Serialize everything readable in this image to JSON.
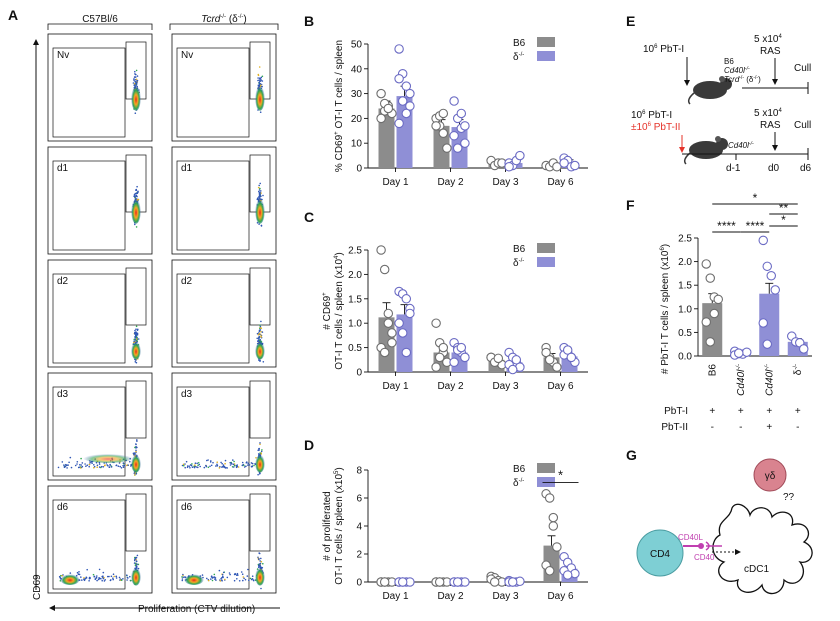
{
  "figure": {
    "panel_letters": [
      "A",
      "B",
      "C",
      "D",
      "E",
      "F",
      "G"
    ],
    "panelA": {
      "col1": "C57Bl/6",
      "col2_gene": "Tcrd",
      "col2_sup": "-/-",
      "col2_paren": "(δ",
      "col2_paren_sup": "-/-",
      "col2_close": ")",
      "rows": [
        "Nv",
        "d1",
        "d2",
        "d3",
        "d6"
      ],
      "ylabel": "CD69",
      "xlabel": "Proliferation (CTV dilution)"
    },
    "panelE": {
      "dose1": "10",
      "dose1_sup": "6",
      "dose1_cell": "PbT-I",
      "mice1_b6": "B6",
      "mice1_cd40": "Cd40l",
      "mice1_cd40_sup": "-/-",
      "mice1_tcrd": "Tcrd",
      "mice1_tcrd_sup": "-/-",
      "mice1_tcrd_paren": "(δ",
      "mice1_tcrd_paren_sup": "-/-",
      "mice1_tcrd_close": ")",
      "ras_dose": "5 x10",
      "ras_dose_sup": "4",
      "ras": "RAS",
      "cull": "Cull",
      "dose2": "10",
      "dose2_sup": "6",
      "dose2_cell": "PbT-I",
      "dose3": "±10",
      "dose3_sup": "6",
      "dose3_cell": "PbT-II",
      "mice2": "Cd40l",
      "mice2_sup": "-/-",
      "days": [
        "d-1",
        "d0",
        "d6"
      ]
    },
    "panelG": {
      "gd": "γδ",
      "qq": "??",
      "cd4": "CD4",
      "cd40l": "CD40L",
      "cd40": "CD40",
      "cdc1": "cDC1"
    }
  },
  "colors": {
    "b6": "#8c8c8c",
    "ko": "#8f8fd6",
    "red": "#e5332a",
    "magenta": "#c03fb0",
    "cd4": "#7ecfd4",
    "gd": "#d9838f"
  },
  "chart_data": [
    {
      "panel": "B",
      "type": "bar",
      "title": "",
      "ylabel": "% CD69+ OT-I T cells / spleen",
      "ylabel_parts": [
        "% CD69",
        "+",
        " OT-I T cells / spleen"
      ],
      "ylim": [
        0,
        50
      ],
      "yticks": [
        0,
        10,
        20,
        30,
        40,
        50
      ],
      "categories": [
        "Day 1",
        "Day 2",
        "Day 3",
        "Day 6"
      ],
      "legend": [
        "B6",
        "δ",
        "-/-"
      ],
      "series": [
        {
          "name": "B6",
          "values": [
            24,
            17,
            2,
            1
          ],
          "sem": [
            3,
            2.5,
            0.8,
            0.5
          ],
          "points": [
            [
              30,
              23,
              25,
              22,
              20,
              26,
              24
            ],
            [
              20,
              17,
              14,
              8,
              17,
              21,
              22
            ],
            [
              3,
              1,
              2,
              2
            ],
            [
              1,
              0.5,
              2,
              0.5
            ]
          ]
        },
        {
          "name": "δ-/-",
          "values": [
            29,
            16.5,
            2,
            2.5
          ],
          "sem": [
            4,
            3,
            0.8,
            0.8
          ],
          "points": [
            [
              48,
              38,
              33,
              25,
              18,
              27,
              22,
              30,
              36
            ],
            [
              27,
              20,
              16,
              10,
              13,
              8,
              22,
              17
            ],
            [
              2,
              1,
              3,
              5,
              0.5
            ],
            [
              4,
              3,
              0.5,
              1,
              2
            ]
          ]
        }
      ]
    },
    {
      "panel": "C",
      "type": "bar",
      "ylabel_top": "# CD69",
      "ylabel_sup": "+",
      "ylabel_bottom": "OT-I T cells / spleen (x10",
      "ylabel_bottom_sup": "4",
      "ylabel_bottom_close": ")",
      "ylim": [
        0,
        2.5
      ],
      "yticks": [
        0,
        0.5,
        1.0,
        1.5,
        2.0,
        2.5
      ],
      "yticklabels": [
        "0",
        "0.5",
        "1.0",
        "1.5",
        "2.0",
        "2.5"
      ],
      "categories": [
        "Day 1",
        "Day 2",
        "Day 3",
        "Day 6"
      ],
      "legend": [
        "B6",
        "δ",
        "-/-"
      ],
      "series": [
        {
          "name": "B6",
          "values": [
            1.12,
            0.4,
            0.25,
            0.3
          ],
          "sem": [
            0.3,
            0.12,
            0.05,
            0.08
          ],
          "points": [
            [
              2.5,
              2.1,
              1.2,
              0.8,
              0.5,
              0.4,
              1.0,
              0.6
            ],
            [
              1.0,
              0.6,
              0.4,
              0.2,
              0.1,
              0.3,
              0.5,
              0.2
            ],
            [
              0.3,
              0.25,
              0.2,
              0.15,
              0.3,
              0.2,
              0.28
            ],
            [
              0.5,
              0.3,
              0.2,
              0.1,
              0.4,
              0.25
            ]
          ]
        },
        {
          "name": "δ-/-",
          "values": [
            1.18,
            0.4,
            0.2,
            0.32
          ],
          "sem": [
            0.2,
            0.08,
            0.06,
            0.06
          ],
          "points": [
            [
              1.65,
              1.6,
              1.5,
              1.3,
              1.0,
              0.8,
              0.4,
              1.2
            ],
            [
              0.6,
              0.5,
              0.4,
              0.3,
              0.2,
              0.45,
              0.5,
              0.3
            ],
            [
              0.4,
              0.3,
              0.2,
              0.1,
              0.15,
              0.05,
              0.25
            ],
            [
              0.5,
              0.4,
              0.3,
              0.2,
              0.35,
              0.45,
              0.3
            ]
          ]
        }
      ]
    },
    {
      "panel": "D",
      "type": "bar",
      "ylabel_top": "# of proliferated",
      "ylabel_bottom": "OT-I T cells / spleen (x10",
      "ylabel_bottom_sup": "5",
      "ylabel_bottom_close": ")",
      "ylim": [
        0,
        8
      ],
      "yticks": [
        0,
        2,
        4,
        6,
        8
      ],
      "categories": [
        "Day 1",
        "Day 2",
        "Day 3",
        "Day 6"
      ],
      "legend": [
        "B6",
        "δ",
        "-/-"
      ],
      "significance": "*",
      "series": [
        {
          "name": "B6",
          "values": [
            0.02,
            0.02,
            0.1,
            2.6
          ],
          "sem": [
            0.01,
            0.01,
            0.05,
            0.7
          ],
          "points": [
            [
              0,
              0,
              0,
              0,
              0,
              0
            ],
            [
              0,
              0,
              0,
              0,
              0,
              0
            ],
            [
              0.4,
              0.3,
              0.1,
              0,
              0.2,
              0
            ],
            [
              6.3,
              6.0,
              4.6,
              2.5,
              1.2,
              0.8,
              4.0
            ]
          ]
        },
        {
          "name": "δ-/-",
          "values": [
            0.02,
            0.02,
            0.05,
            0.95
          ],
          "sem": [
            0.01,
            0.01,
            0.03,
            0.25
          ],
          "points": [
            [
              0,
              0,
              0,
              0,
              0,
              0
            ],
            [
              0,
              0,
              0,
              0,
              0,
              0
            ],
            [
              0.1,
              0,
              0,
              0.05,
              0,
              0
            ],
            [
              1.8,
              1.4,
              1.0,
              0.6,
              0.8,
              0.5
            ]
          ]
        }
      ]
    },
    {
      "panel": "F",
      "type": "bar",
      "ylabel": "# PbT-I T cells / spleen (x10",
      "ylabel_sup": "6",
      "ylabel_close": ")",
      "ylim": [
        0,
        2.5
      ],
      "yticks": [
        0,
        0.5,
        1.0,
        1.5,
        2.0,
        2.5
      ],
      "yticklabels": [
        "0.0",
        "0.5",
        "1.0",
        "1.5",
        "2.0",
        "2.5"
      ],
      "categories": [
        "B6",
        "Cd40l-/-",
        "Cd40l-/-",
        "δ-/-"
      ],
      "category_labels": [
        {
          "main": "B6",
          "sup": ""
        },
        {
          "main": "Cd40l",
          "sup": "-/-"
        },
        {
          "main": "Cd40l",
          "sup": "-/-"
        },
        {
          "main": "δ",
          "sup": "-/-"
        }
      ],
      "values": [
        1.12,
        0.07,
        1.32,
        0.3
      ],
      "sem": [
        0.2,
        0.02,
        0.22,
        0.07
      ],
      "bar_colors": [
        "b6",
        "ko",
        "ko",
        "ko"
      ],
      "points": [
        [
          1.95,
          1.65,
          1.25,
          1.2,
          0.72,
          0.3,
          0.9
        ],
        [
          0.1,
          0.05,
          0.04,
          0.08,
          0.02,
          0.06
        ],
        [
          2.45,
          1.9,
          1.7,
          1.4,
          0.7,
          0.25
        ],
        [
          0.42,
          0.3,
          0.28,
          0.15
        ]
      ],
      "row_labels": [
        "PbT-I",
        "PbT-II"
      ],
      "row_values": [
        [
          "+",
          "+",
          "+",
          "+"
        ],
        [
          "-",
          "-",
          "+",
          "-"
        ]
      ],
      "significance": [
        {
          "from": 0,
          "to": 3,
          "label": "*"
        },
        {
          "from": 2,
          "to": 3,
          "label": "**"
        },
        {
          "from": 2,
          "to": 3,
          "label": "*"
        },
        {
          "from": 0,
          "to": 1,
          "label": "****"
        },
        {
          "from": 1,
          "to": 2,
          "label": "****"
        }
      ]
    }
  ]
}
